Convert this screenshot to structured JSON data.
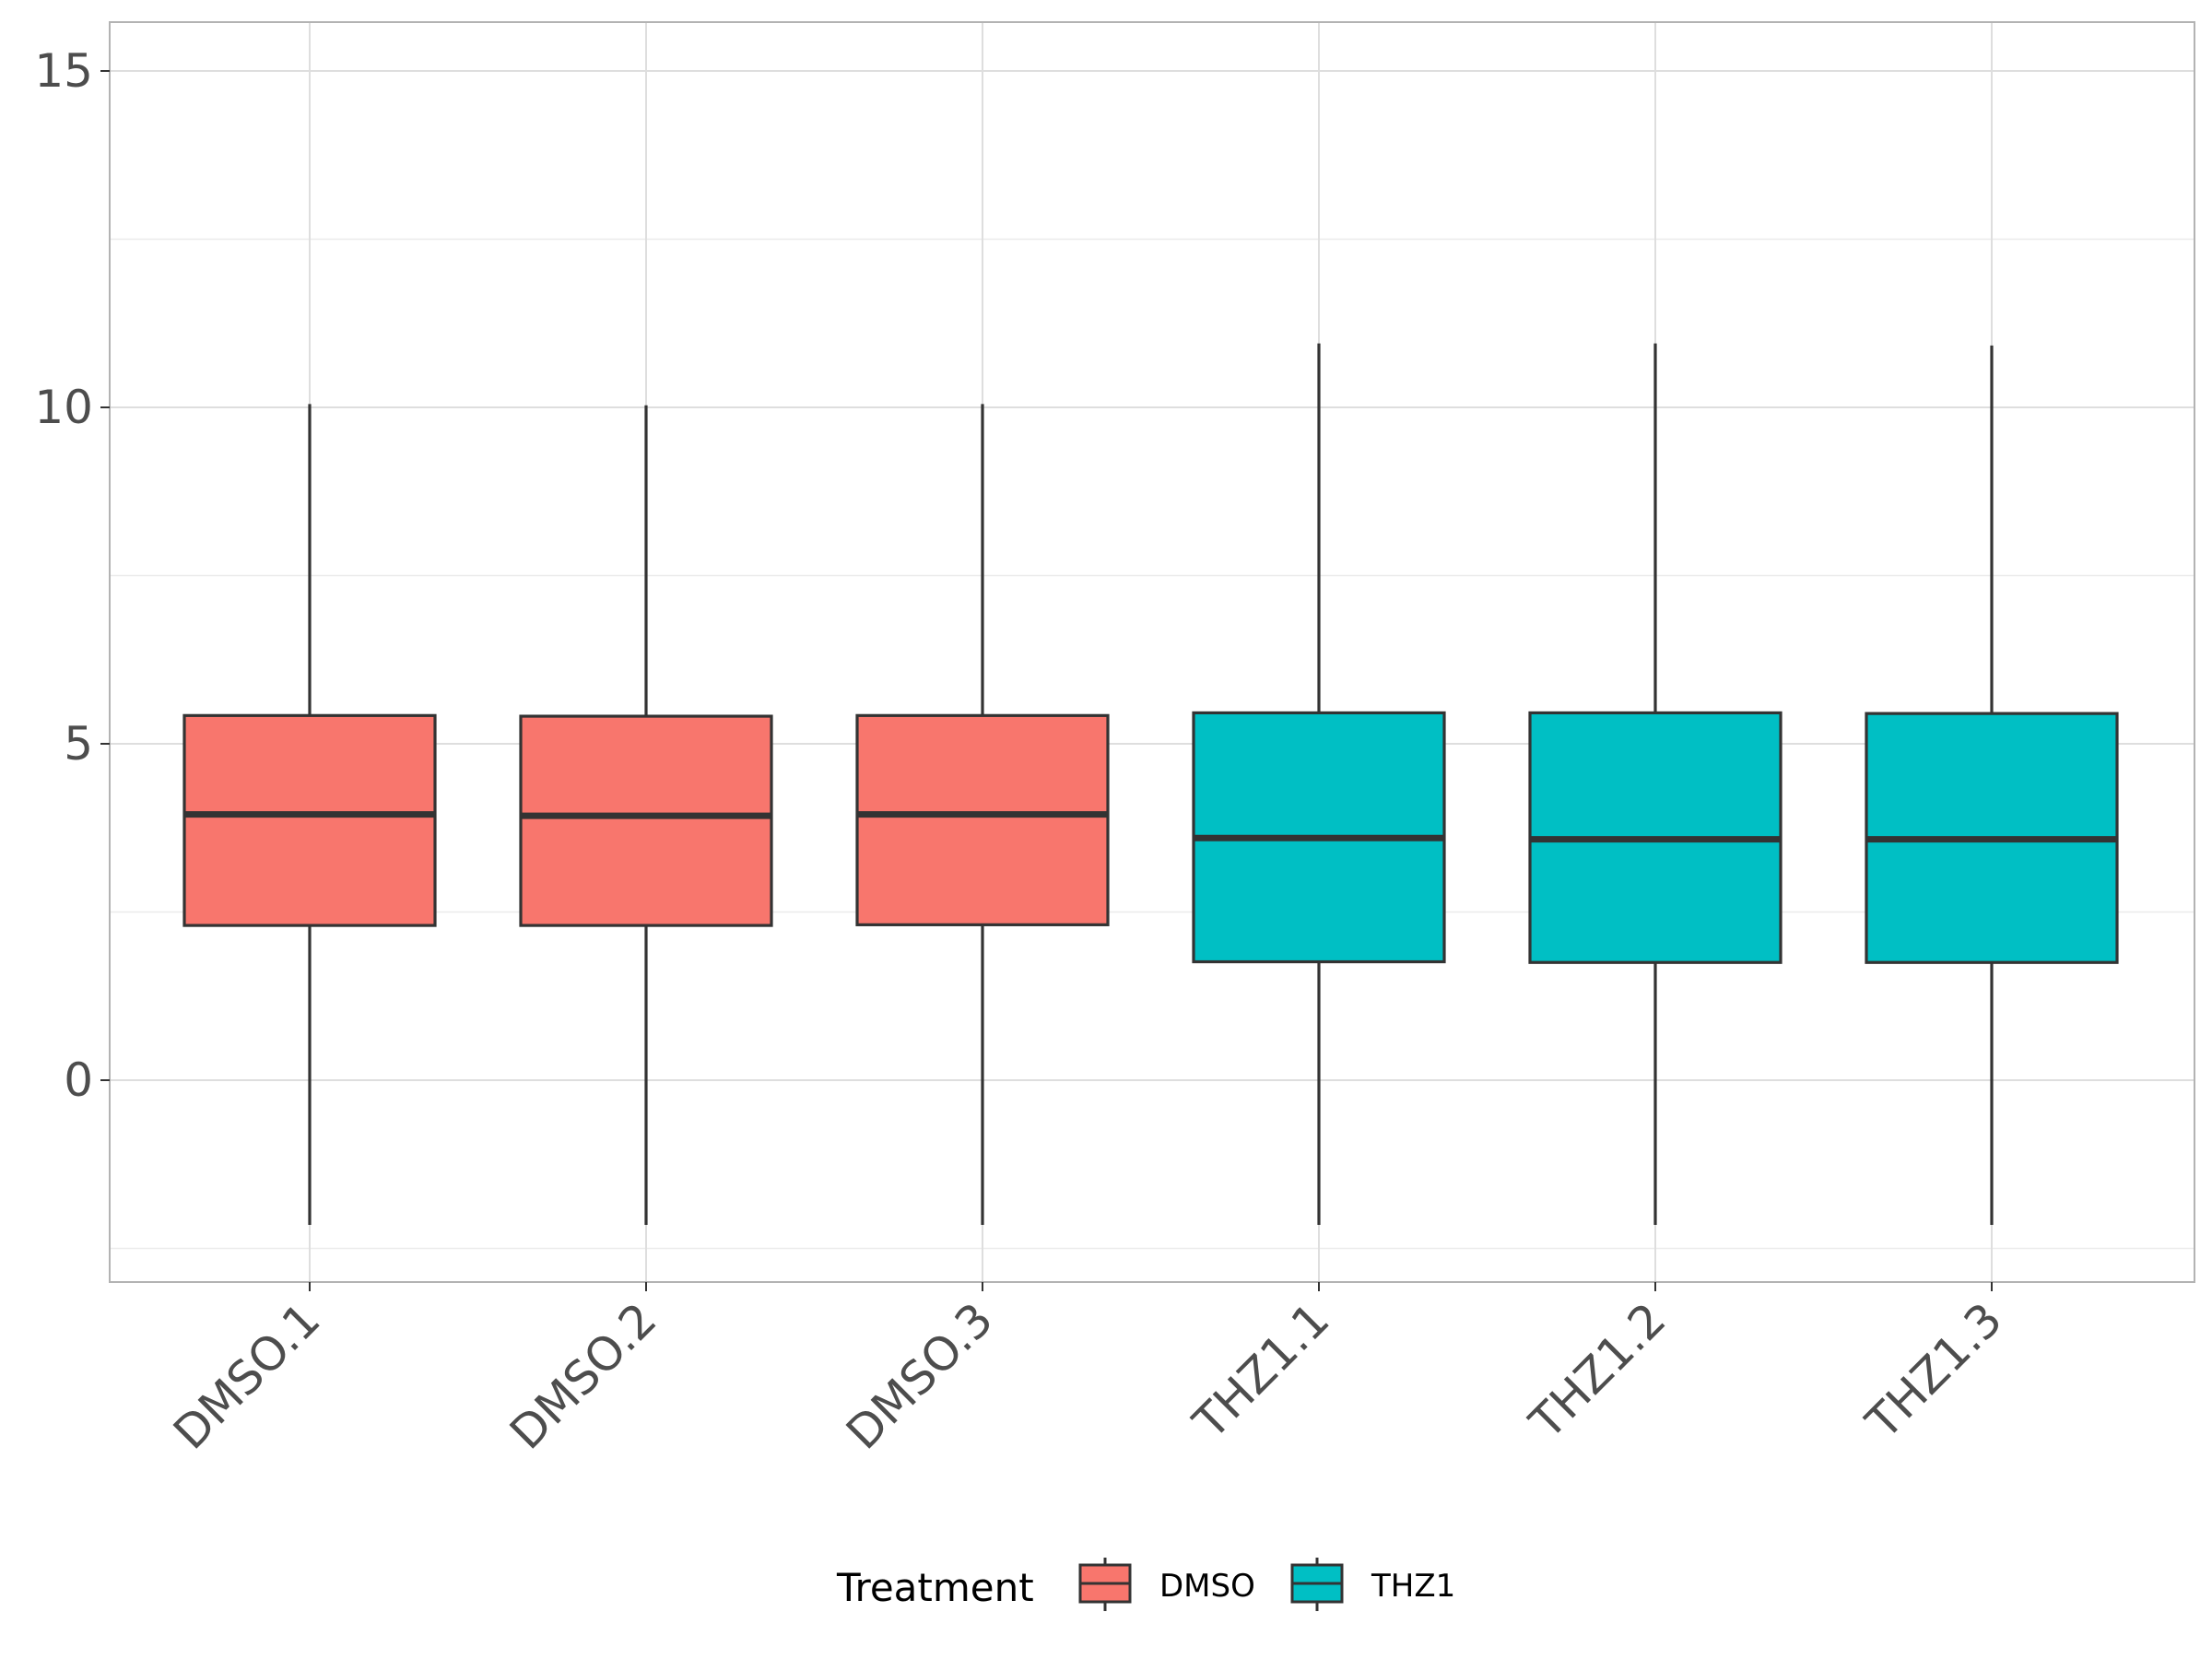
{
  "chart_data": {
    "type": "box",
    "title": "",
    "xlabel": "",
    "ylabel": "",
    "ylim": [
      -3,
      15.7
    ],
    "yticks": [
      0,
      5,
      10,
      15
    ],
    "categories": [
      "DMSO.1",
      "DMSO.2",
      "DMSO.3",
      "THZ1.1",
      "THZ1.2",
      "THZ1.3"
    ],
    "boxes": [
      {
        "label": "DMSO.1",
        "group": "DMSO",
        "min": -2.15,
        "q1": 2.3,
        "median": 3.95,
        "q3": 5.42,
        "max": 10.05
      },
      {
        "label": "DMSO.2",
        "group": "DMSO",
        "min": -2.15,
        "q1": 2.3,
        "median": 3.93,
        "q3": 5.41,
        "max": 10.03
      },
      {
        "label": "DMSO.3",
        "group": "DMSO",
        "min": -2.15,
        "q1": 2.31,
        "median": 3.95,
        "q3": 5.42,
        "max": 10.05
      },
      {
        "label": "THZ1.1",
        "group": "THZ1",
        "min": -2.15,
        "q1": 1.76,
        "median": 3.6,
        "q3": 5.46,
        "max": 10.95
      },
      {
        "label": "THZ1.2",
        "group": "THZ1",
        "min": -2.15,
        "q1": 1.75,
        "median": 3.58,
        "q3": 5.46,
        "max": 10.95
      },
      {
        "label": "THZ1.3",
        "group": "THZ1",
        "min": -2.15,
        "q1": 1.75,
        "median": 3.58,
        "q3": 5.45,
        "max": 10.92
      }
    ],
    "legend": {
      "title": "Treatment",
      "position": "bottom",
      "items": [
        {
          "label": "DMSO",
          "color": "#F8766D"
        },
        {
          "label": "THZ1",
          "color": "#00BFC4"
        }
      ]
    },
    "grid": true
  }
}
